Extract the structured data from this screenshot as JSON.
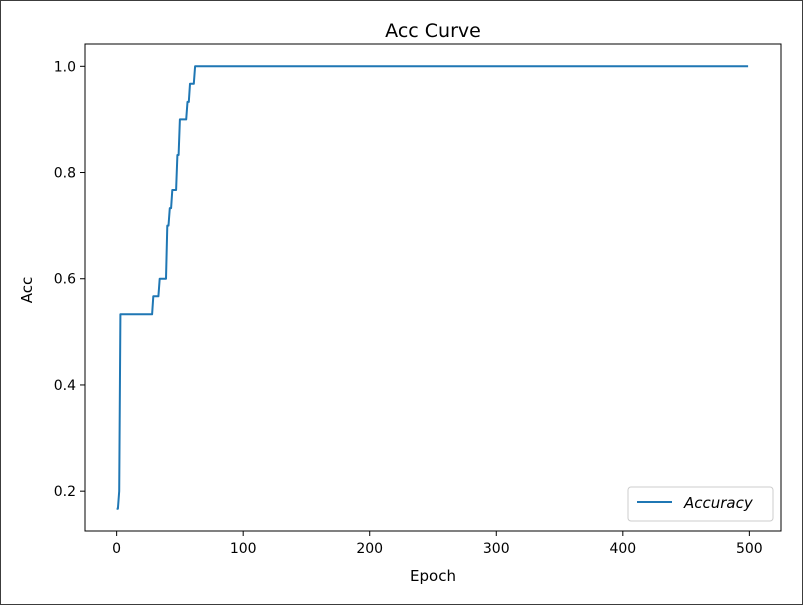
{
  "chart_data": {
    "type": "line",
    "title": "Acc Curve",
    "xlabel": "Epoch",
    "ylabel": "Acc",
    "xlim": [
      -25,
      525
    ],
    "ylim": [
      0.125,
      1.042
    ],
    "xticks": [
      0,
      100,
      200,
      300,
      400,
      500
    ],
    "xtick_labels": [
      "0",
      "100",
      "200",
      "300",
      "400",
      "500"
    ],
    "yticks": [
      0.2,
      0.4,
      0.6,
      0.8,
      1.0
    ],
    "ytick_labels": [
      "0.2",
      "0.4",
      "0.6",
      "0.8",
      "1.0"
    ],
    "grid": false,
    "legend_position": "lower-right",
    "series": [
      {
        "name": "Accuracy",
        "color": "#1f77b4",
        "x": [
          0,
          1,
          2,
          3,
          4,
          28,
          29,
          33,
          34,
          38,
          39,
          40,
          41,
          42,
          43,
          44,
          45,
          46,
          47,
          48,
          49,
          50,
          51,
          52,
          53,
          54,
          55,
          56,
          57,
          58,
          59,
          60,
          61,
          62,
          63,
          64,
          65,
          66,
          499
        ],
        "y": [
          0.167,
          0.167,
          0.2,
          0.533,
          0.533,
          0.533,
          0.567,
          0.567,
          0.6,
          0.6,
          0.6,
          0.7,
          0.7,
          0.733,
          0.733,
          0.767,
          0.767,
          0.767,
          0.767,
          0.833,
          0.833,
          0.9,
          0.9,
          0.9,
          0.9,
          0.9,
          0.9,
          0.933,
          0.933,
          0.967,
          0.967,
          0.967,
          0.967,
          1.0,
          1.0,
          1.0,
          1.0,
          1.0,
          1.0
        ]
      }
    ]
  }
}
